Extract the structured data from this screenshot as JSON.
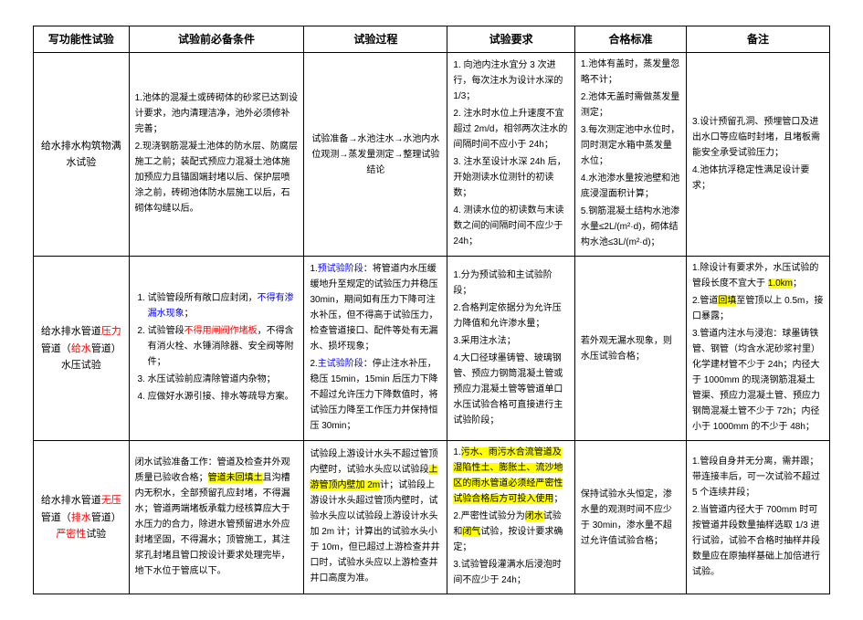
{
  "columns": [
    {
      "label": "写功能性试验",
      "width": "12%"
    },
    {
      "label": "试验前必备条件",
      "width": "22%"
    },
    {
      "label": "试验过程",
      "width": "18%"
    },
    {
      "label": "试验要求",
      "width": "16%"
    },
    {
      "label": "合格标准",
      "width": "14%"
    },
    {
      "label": "备注",
      "width": "18%"
    }
  ],
  "rows": [
    {
      "name": {
        "segments": [
          {
            "t": "给水排水构筑物满水试验"
          }
        ]
      },
      "cond": {
        "items": [
          {
            "segments": [
              {
                "t": "1.池体的混凝土或砖砌体的砂浆已达到设计要求，池内清理洁净，池外必须修补完善；"
              }
            ]
          },
          {
            "segments": [
              {
                "t": "2.现浇钢筋混凝土池体的防水层、防腐层施工之前；装配式预应力混凝土池体施加预应力且锚固端封堵以后、保护层喷涂之前，砖砌池体防水层施工以后，石砌体勾缝以后。"
              }
            ]
          }
        ]
      },
      "proc": {
        "align": "center",
        "segments": [
          {
            "t": "试验准备→水池注水→水池内水位观测→蒸发量测定→整理试验结论"
          }
        ]
      },
      "req": {
        "items": [
          {
            "segments": [
              {
                "t": "1. 向池内注水宜分 3 次进行，每次注水为设计水深的 1/3；"
              }
            ]
          },
          {
            "segments": [
              {
                "t": "2. 注水时水位上升速度不宜超过 2m/d，相邻两次注水的间隔时间不应小于 24h；"
              }
            ]
          },
          {
            "segments": [
              {
                "t": "3. 注水至设计水深 24h 后，开始测读水位测针的初读数；"
              }
            ]
          },
          {
            "segments": [
              {
                "t": "4. 测读水位的初读数与末读数之间的间隔时间不应少于 24h；"
              }
            ]
          }
        ]
      },
      "pass": {
        "items": [
          {
            "segments": [
              {
                "t": "1.池体有盖时，蒸发量忽略不计；"
              }
            ]
          },
          {
            "segments": [
              {
                "t": "2.池体无盖时需做蒸发量测定；"
              }
            ]
          },
          {
            "segments": [
              {
                "t": "3.每次测定池中水位时，同时测定水箱中蒸发量水位；"
              }
            ]
          },
          {
            "segments": [
              {
                "t": "4.水池渗水量按池壁和池底浸湿面积计算；"
              }
            ]
          },
          {
            "segments": [
              {
                "t": "5.钢筋混凝土结构水池渗水量≤2L/(m²·d)，砌体结构水池≤3L/(m²·d)；"
              }
            ]
          }
        ]
      },
      "note": {
        "items": [
          {
            "segments": [
              {
                "t": "3.设计预留孔洞、预埋管口及进出水口等应临时封堵，且堵板需能安全承受试验压力；"
              }
            ]
          },
          {
            "segments": [
              {
                "t": "4.池体抗浮稳定性满足设计要求；"
              }
            ]
          }
        ]
      }
    },
    {
      "name": {
        "segments": [
          {
            "t": "给水排水管道"
          },
          {
            "t": "压力",
            "cls": "red"
          },
          {
            "t": "管道（"
          },
          {
            "t": "给水",
            "cls": "red"
          },
          {
            "t": "管道）水压试验"
          }
        ]
      },
      "cond": {
        "ordered": true,
        "items": [
          {
            "segments": [
              {
                "t": "试验管段所有敞口应封闭，"
              },
              {
                "t": "不得有渗漏水现象",
                "cls": "blue"
              },
              {
                "t": "；"
              }
            ]
          },
          {
            "segments": [
              {
                "t": "试验管段"
              },
              {
                "t": "不得用闸阀作堵板",
                "cls": "red"
              },
              {
                "t": "，不得含有消火栓、水锤消除器、安全阀等附件；"
              }
            ]
          },
          {
            "segments": [
              {
                "t": "水压试验前应清除管道内杂物；"
              }
            ]
          },
          {
            "segments": [
              {
                "t": "应做好水源引接、排水等疏导方案。"
              }
            ]
          }
        ]
      },
      "proc": {
        "items": [
          {
            "segments": [
              {
                "t": "1."
              },
              {
                "t": "预试验阶段",
                "cls": "blue"
              },
              {
                "t": "：将管道内水压缓缓地升至规定的试验压力并稳压 30min，期间如有压力下降可注水补压，但不得高于试验压力，检查管道接口、配件等处有无漏水、损坏现象；"
              }
            ]
          },
          {
            "segments": [
              {
                "t": "2."
              },
              {
                "t": "主试验阶段",
                "cls": "blue"
              },
              {
                "t": "：停止注水补压，稳压 15min，15min 后压力下降不超过允许压力下降数值时，将试验压力降至工作压力并保持恒压 30min；"
              }
            ]
          }
        ]
      },
      "req": {
        "items": [
          {
            "segments": [
              {
                "t": "1.分为预试验和主试验阶段；"
              }
            ]
          },
          {
            "segments": [
              {
                "t": "2.合格判定依据分为允许压力降值和允许渗水量；"
              }
            ]
          },
          {
            "segments": [
              {
                "t": "3.采用注水法；"
              }
            ]
          },
          {
            "segments": [
              {
                "t": "4.大口径球墨铸管、玻璃钢管、预应力钢筒混凝土管或预应力混凝土管等管道单口水压试验合格可直接进行主试验阶段；"
              }
            ]
          }
        ]
      },
      "pass": {
        "segments": [
          {
            "t": "若外观无漏水现象，则水压试验合格；"
          }
        ]
      },
      "note": {
        "items": [
          {
            "segments": [
              {
                "t": "1.除设计有要求外，水压试验的管段长度不宜大于 "
              },
              {
                "t": "1.0km",
                "cls": "hl"
              },
              {
                "t": "；"
              }
            ]
          },
          {
            "segments": [
              {
                "t": "2.管道"
              },
              {
                "t": "回填",
                "cls": "hl"
              },
              {
                "t": "至管顶以上 0.5m，接口暴露；"
              }
            ]
          },
          {
            "segments": [
              {
                "t": "3.管道内注水与浸泡：球墨铸铁管、钢管（均含水泥砂浆衬里）化学建材管不少于 24h；内径大于 1000mm 的现浇钢筋混凝土管渠、预应力混凝土管、预应力钢筒混凝土管不少于 72h；内径小于 1000mm 的不少于 48h；"
              }
            ]
          }
        ]
      }
    },
    {
      "name": {
        "segments": [
          {
            "t": "给水排水管道"
          },
          {
            "t": "无压",
            "cls": "red"
          },
          {
            "t": "管道（"
          },
          {
            "t": "排水",
            "cls": "red"
          },
          {
            "t": "管道）"
          },
          {
            "t": "严密性",
            "cls": "red"
          },
          {
            "t": "试验"
          }
        ]
      },
      "cond": {
        "items": [
          {
            "segments": [
              {
                "t": "闭水试验准备工作：管道及检查井外观质量已验收合格；"
              },
              {
                "t": "管道未回填土",
                "cls": "hl"
              },
              {
                "t": "且沟槽内无积水，全部预留孔应封堵，不得漏水；管道两端堵板承载力经核算应大于水压力的合力，除进水管预留进水外应封堵坚固，不得漏水；顶管施工，其注浆孔封堵且管口按设计要求处理完毕，地下水位于管底以下。"
              }
            ]
          }
        ]
      },
      "proc": {
        "items": [
          {
            "segments": [
              {
                "t": "试验段上游设计水头不超过管顶内壁时，试验水头应以试验段"
              },
              {
                "t": "上游管顶内壁加 2m",
                "cls": "hl"
              },
              {
                "t": "计；试验段上游设计水头超过管顶内壁时，试验水头应以试验段上游设计水头加 2m 计；计算出的试验水头小于 10m，但已超过上游检查井井口时，试验水头应以上游检查井井口高度为准。"
              }
            ]
          }
        ]
      },
      "req": {
        "items": [
          {
            "segments": [
              {
                "t": "1."
              },
              {
                "t": "污水、雨污水合流管道及湿陷性土、膨胀土、流沙地区的雨水管道必须经严密性试验合格后方可投入使用",
                "cls": "hl"
              },
              {
                "t": "；"
              }
            ]
          },
          {
            "segments": [
              {
                "t": "2.严密性试验分为"
              },
              {
                "t": "闭水",
                "cls": "hl"
              },
              {
                "t": "试验和"
              },
              {
                "t": "闭气",
                "cls": "hl"
              },
              {
                "t": "试验，按设计要求确定；"
              }
            ]
          },
          {
            "segments": [
              {
                "t": "3.试验管段灌满水后浸泡时间不应少于 24h；"
              }
            ]
          }
        ]
      },
      "pass": {
        "segments": [
          {
            "t": "保持试验水头恒定，渗水量的观测时间不应少于 30min，渗水量不超过允许值试验合格；"
          }
        ]
      },
      "note": {
        "items": [
          {
            "segments": [
              {
                "t": "1.管段自身并无分离，需并跟；带连接丰后，可一次试验不超过 5 个连续井段；"
              }
            ]
          },
          {
            "segments": [
              {
                "t": "2.当管道内径大于 700mm 时可按管道井段数量抽样选取 1/3 进行试验，试验不合格时抽样井段数量应在原抽样基础上加倍进行试验。"
              }
            ]
          }
        ]
      }
    }
  ]
}
